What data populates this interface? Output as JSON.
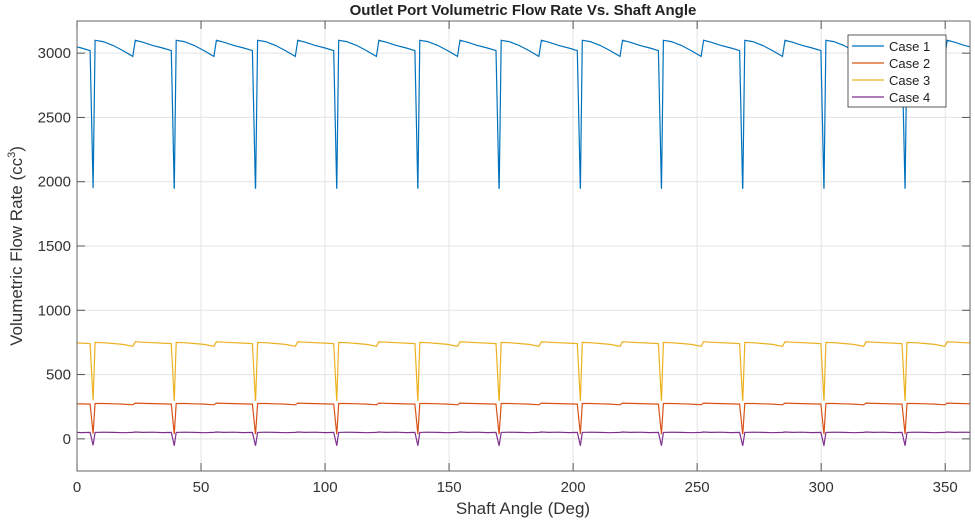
{
  "chart_data": {
    "type": "line",
    "title": "Outlet Port Volumetric Flow Rate Vs. Shaft Angle",
    "xlabel": "Shaft Angle (Deg)",
    "ylabel": "Volumetric  Flow  Rate  (cc",
    "ylabel_sup": "3",
    "ylabel_end": ")",
    "xlim": [
      0,
      360
    ],
    "ylim": [
      -250,
      3250
    ],
    "xticks": [
      0,
      50,
      100,
      150,
      200,
      250,
      300,
      350
    ],
    "yticks": [
      0,
      500,
      1000,
      1500,
      2000,
      2500,
      3000
    ],
    "grid": true,
    "legend_position": "top-right",
    "period_deg": 32.73,
    "dip_angles": [
      6.5,
      39.2,
      72.0,
      104.7,
      137.4,
      170.2,
      202.9,
      235.6,
      268.4,
      301.1,
      333.8
    ],
    "cycle_offsets_deg": [
      0,
      0.8,
      4,
      8,
      12,
      16,
      17,
      20,
      24,
      28,
      31.5,
      32.73
    ],
    "series": [
      {
        "name": "Case 1",
        "color": "#0072BD",
        "cycle_values": [
          1950,
          3100,
          3090,
          3060,
          3020,
          2975,
          3100,
          3085,
          3060,
          3040,
          3020,
          1950
        ]
      },
      {
        "name": "Case 2",
        "color": "#D95319",
        "cycle_values": [
          40,
          275,
          275,
          273,
          270,
          265,
          278,
          276,
          274,
          272,
          270,
          40
        ]
      },
      {
        "name": "Case 3",
        "color": "#EDB120",
        "cycle_values": [
          300,
          750,
          748,
          742,
          735,
          720,
          755,
          752,
          748,
          745,
          740,
          300
        ]
      },
      {
        "name": "Case 4",
        "color": "#7E2F8E",
        "cycle_values": [
          -50,
          50,
          52,
          50,
          48,
          50,
          53,
          50,
          52,
          49,
          50,
          -50
        ]
      }
    ]
  }
}
